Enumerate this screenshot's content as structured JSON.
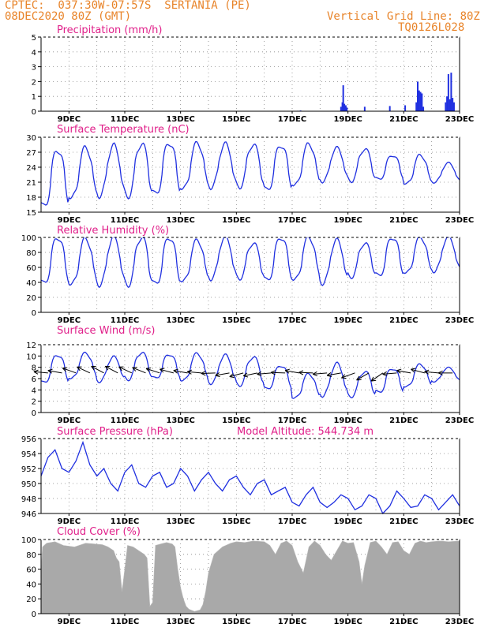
{
  "header": {
    "line1_left": "CPTEC:  037:30W-07:57S  SERTANIA (PE)",
    "line2_left": "08DEC2020 80Z (GMT)",
    "line1_right": "Vertical Grid Line: 80Z",
    "line2_right": "TQ0126L028"
  },
  "colors": {
    "header": "#e8842a",
    "title": "#e0208a",
    "series": "#2030e0",
    "cloud": "#a9a9a9",
    "grid": "#888888"
  },
  "chart_data": [
    {
      "type": "bar",
      "title": "Precipitation (mm/h)",
      "xlabels": [
        "9DEC",
        "11DEC",
        "13DEC",
        "15DEC",
        "17DEC",
        "19DEC",
        "21DEC",
        "23DEC"
      ],
      "xlim_days": [
        8.0,
        23.0
      ],
      "ylim": [
        0,
        5
      ],
      "yticks": [
        0,
        1,
        2,
        3,
        4,
        5
      ],
      "bars": [
        {
          "x": 17.2,
          "v": 0.03
        },
        {
          "x": 17.3,
          "v": 0.05
        },
        {
          "x": 18.75,
          "v": 0.3
        },
        {
          "x": 18.8,
          "v": 0.6
        },
        {
          "x": 18.83,
          "v": 1.75
        },
        {
          "x": 18.87,
          "v": 0.5
        },
        {
          "x": 18.92,
          "v": 0.4
        },
        {
          "x": 18.96,
          "v": 0.25
        },
        {
          "x": 19.6,
          "v": 0.3
        },
        {
          "x": 20.5,
          "v": 0.35
        },
        {
          "x": 21.05,
          "v": 0.4
        },
        {
          "x": 21.45,
          "v": 0.6
        },
        {
          "x": 21.5,
          "v": 2.0
        },
        {
          "x": 21.55,
          "v": 1.4
        },
        {
          "x": 21.6,
          "v": 1.3
        },
        {
          "x": 21.65,
          "v": 1.2
        },
        {
          "x": 21.7,
          "v": 0.3
        },
        {
          "x": 22.5,
          "v": 0.6
        },
        {
          "x": 22.55,
          "v": 1.0
        },
        {
          "x": 22.6,
          "v": 2.5
        },
        {
          "x": 22.65,
          "v": 0.8
        },
        {
          "x": 22.7,
          "v": 2.6
        },
        {
          "x": 22.75,
          "v": 0.9
        },
        {
          "x": 22.8,
          "v": 0.6
        }
      ]
    },
    {
      "type": "line",
      "title": "Surface Temperature (nC)",
      "ylim": [
        15,
        30
      ],
      "yticks": [
        15,
        18,
        21,
        24,
        27,
        30
      ],
      "diurnal": {
        "max_day": [
          27.5,
          27.9,
          28.3,
          28.7,
          28.9,
          28.8,
          28.6,
          28.5,
          28.4,
          28.6,
          27.8,
          27.6,
          26.4,
          26.4,
          24.8
        ],
        "min_day": [
          16.0,
          17.8,
          18.3,
          18.1,
          18.5,
          19.6,
          20.0,
          20.0,
          19.3,
          20.3,
          21.2,
          21.2,
          21.5,
          20.6,
          21.0
        ]
      }
    },
    {
      "type": "line",
      "title": "Relative Humidity (%)",
      "ylim": [
        0,
        100
      ],
      "yticks": [
        0,
        20,
        40,
        60,
        80,
        100
      ],
      "diurnal": {
        "max_day": [
          100,
          98,
          100,
          100,
          100,
          96,
          100,
          92,
          100,
          100,
          96,
          92,
          100,
          100,
          100
        ],
        "min_day": [
          38,
          37,
          37,
          36,
          37,
          41,
          45,
          45,
          42,
          43,
          39,
          47,
          48,
          52,
          55
        ]
      }
    },
    {
      "type": "line",
      "title": "Surface Wind (m/s)",
      "ylim": [
        0,
        12
      ],
      "yticks": [
        0,
        2,
        4,
        6,
        8,
        10,
        12
      ],
      "diurnal": {
        "max_day": [
          10.2,
          10.5,
          9.8,
          10.6,
          10.3,
          10.4,
          10.1,
          9.8,
          8.3,
          6.8,
          8.6,
          7.2,
          7.8,
          8.5,
          7.9
        ],
        "min_day": [
          5.2,
          6.0,
          5.5,
          5.8,
          6.0,
          5.6,
          5.2,
          4.8,
          4.1,
          2.5,
          3.0,
          2.8,
          3.5,
          4.5,
          5.5
        ]
      },
      "arrows_from_deg": [
        95,
        100,
        110,
        115,
        118,
        118,
        115,
        112,
        108,
        105,
        100,
        95,
        88,
        80,
        75,
        78,
        85,
        92,
        100,
        92,
        85,
        80,
        70,
        60,
        55,
        85,
        100,
        105,
        95,
        90
      ]
    },
    {
      "type": "line",
      "title": "Surface Pressure (hPa)",
      "annotation": "Model Altitude: 544.734 m",
      "ylim": [
        946,
        956
      ],
      "yticks": [
        946,
        948,
        950,
        952,
        954,
        956
      ],
      "series": [
        951.0,
        953.5,
        954.5,
        952.0,
        951.5,
        953.0,
        955.5,
        952.5,
        951.0,
        952.0,
        950.0,
        949.0,
        951.5,
        952.5,
        950.0,
        949.5,
        951.0,
        951.5,
        949.5,
        950.0,
        952.0,
        951.0,
        949.0,
        950.5,
        951.5,
        950.0,
        949.0,
        950.5,
        951.0,
        949.5,
        948.5,
        950.0,
        950.5,
        948.5,
        949.0,
        949.5,
        947.5,
        947.0,
        948.5,
        949.5,
        947.5,
        946.8,
        947.5,
        948.5,
        948.0,
        946.5,
        947.0,
        948.5,
        948.0,
        946.0,
        947.0,
        949.0,
        948.0,
        946.8,
        947.0,
        948.5,
        948.0,
        946.5,
        947.5,
        948.5,
        947.0
      ]
    },
    {
      "type": "area",
      "title": "Cloud Cover (%)",
      "ylim": [
        0,
        100
      ],
      "yticks": [
        0,
        20,
        40,
        60,
        80,
        100
      ],
      "points": [
        [
          8.0,
          55
        ],
        [
          8.05,
          90
        ],
        [
          8.2,
          95
        ],
        [
          8.5,
          97
        ],
        [
          8.8,
          92
        ],
        [
          9.2,
          90
        ],
        [
          9.6,
          95
        ],
        [
          9.9,
          94
        ],
        [
          10.2,
          93
        ],
        [
          10.4,
          90
        ],
        [
          10.6,
          85
        ],
        [
          10.7,
          75
        ],
        [
          10.8,
          70
        ],
        [
          10.9,
          30
        ],
        [
          11.0,
          60
        ],
        [
          11.1,
          92
        ],
        [
          11.3,
          90
        ],
        [
          11.5,
          85
        ],
        [
          11.7,
          80
        ],
        [
          11.8,
          75
        ],
        [
          11.9,
          10
        ],
        [
          12.0,
          15
        ],
        [
          12.1,
          92
        ],
        [
          12.3,
          94
        ],
        [
          12.5,
          96
        ],
        [
          12.7,
          94
        ],
        [
          12.8,
          90
        ],
        [
          12.9,
          60
        ],
        [
          13.0,
          35
        ],
        [
          13.1,
          20
        ],
        [
          13.2,
          10
        ],
        [
          13.3,
          6
        ],
        [
          13.5,
          3
        ],
        [
          13.7,
          5
        ],
        [
          13.8,
          12
        ],
        [
          13.9,
          30
        ],
        [
          14.0,
          55
        ],
        [
          14.2,
          80
        ],
        [
          14.5,
          90
        ],
        [
          14.8,
          95
        ],
        [
          15.0,
          97
        ],
        [
          15.3,
          96
        ],
        [
          15.6,
          98
        ],
        [
          16.0,
          97
        ],
        [
          16.2,
          92
        ],
        [
          16.4,
          80
        ],
        [
          16.6,
          95
        ],
        [
          16.8,
          98
        ],
        [
          17.0,
          92
        ],
        [
          17.2,
          70
        ],
        [
          17.4,
          55
        ],
        [
          17.6,
          90
        ],
        [
          17.8,
          98
        ],
        [
          18.0,
          92
        ],
        [
          18.2,
          80
        ],
        [
          18.4,
          72
        ],
        [
          18.6,
          85
        ],
        [
          18.8,
          98
        ],
        [
          19.0,
          95
        ],
        [
          19.2,
          96
        ],
        [
          19.4,
          70
        ],
        [
          19.5,
          40
        ],
        [
          19.6,
          65
        ],
        [
          19.8,
          96
        ],
        [
          20.0,
          98
        ],
        [
          20.2,
          90
        ],
        [
          20.4,
          80
        ],
        [
          20.6,
          96
        ],
        [
          20.8,
          97
        ],
        [
          21.0,
          85
        ],
        [
          21.2,
          80
        ],
        [
          21.4,
          95
        ],
        [
          21.6,
          98
        ],
        [
          21.8,
          96
        ],
        [
          22.0,
          97
        ],
        [
          22.3,
          98
        ],
        [
          22.6,
          97
        ],
        [
          23.0,
          98
        ]
      ]
    }
  ]
}
